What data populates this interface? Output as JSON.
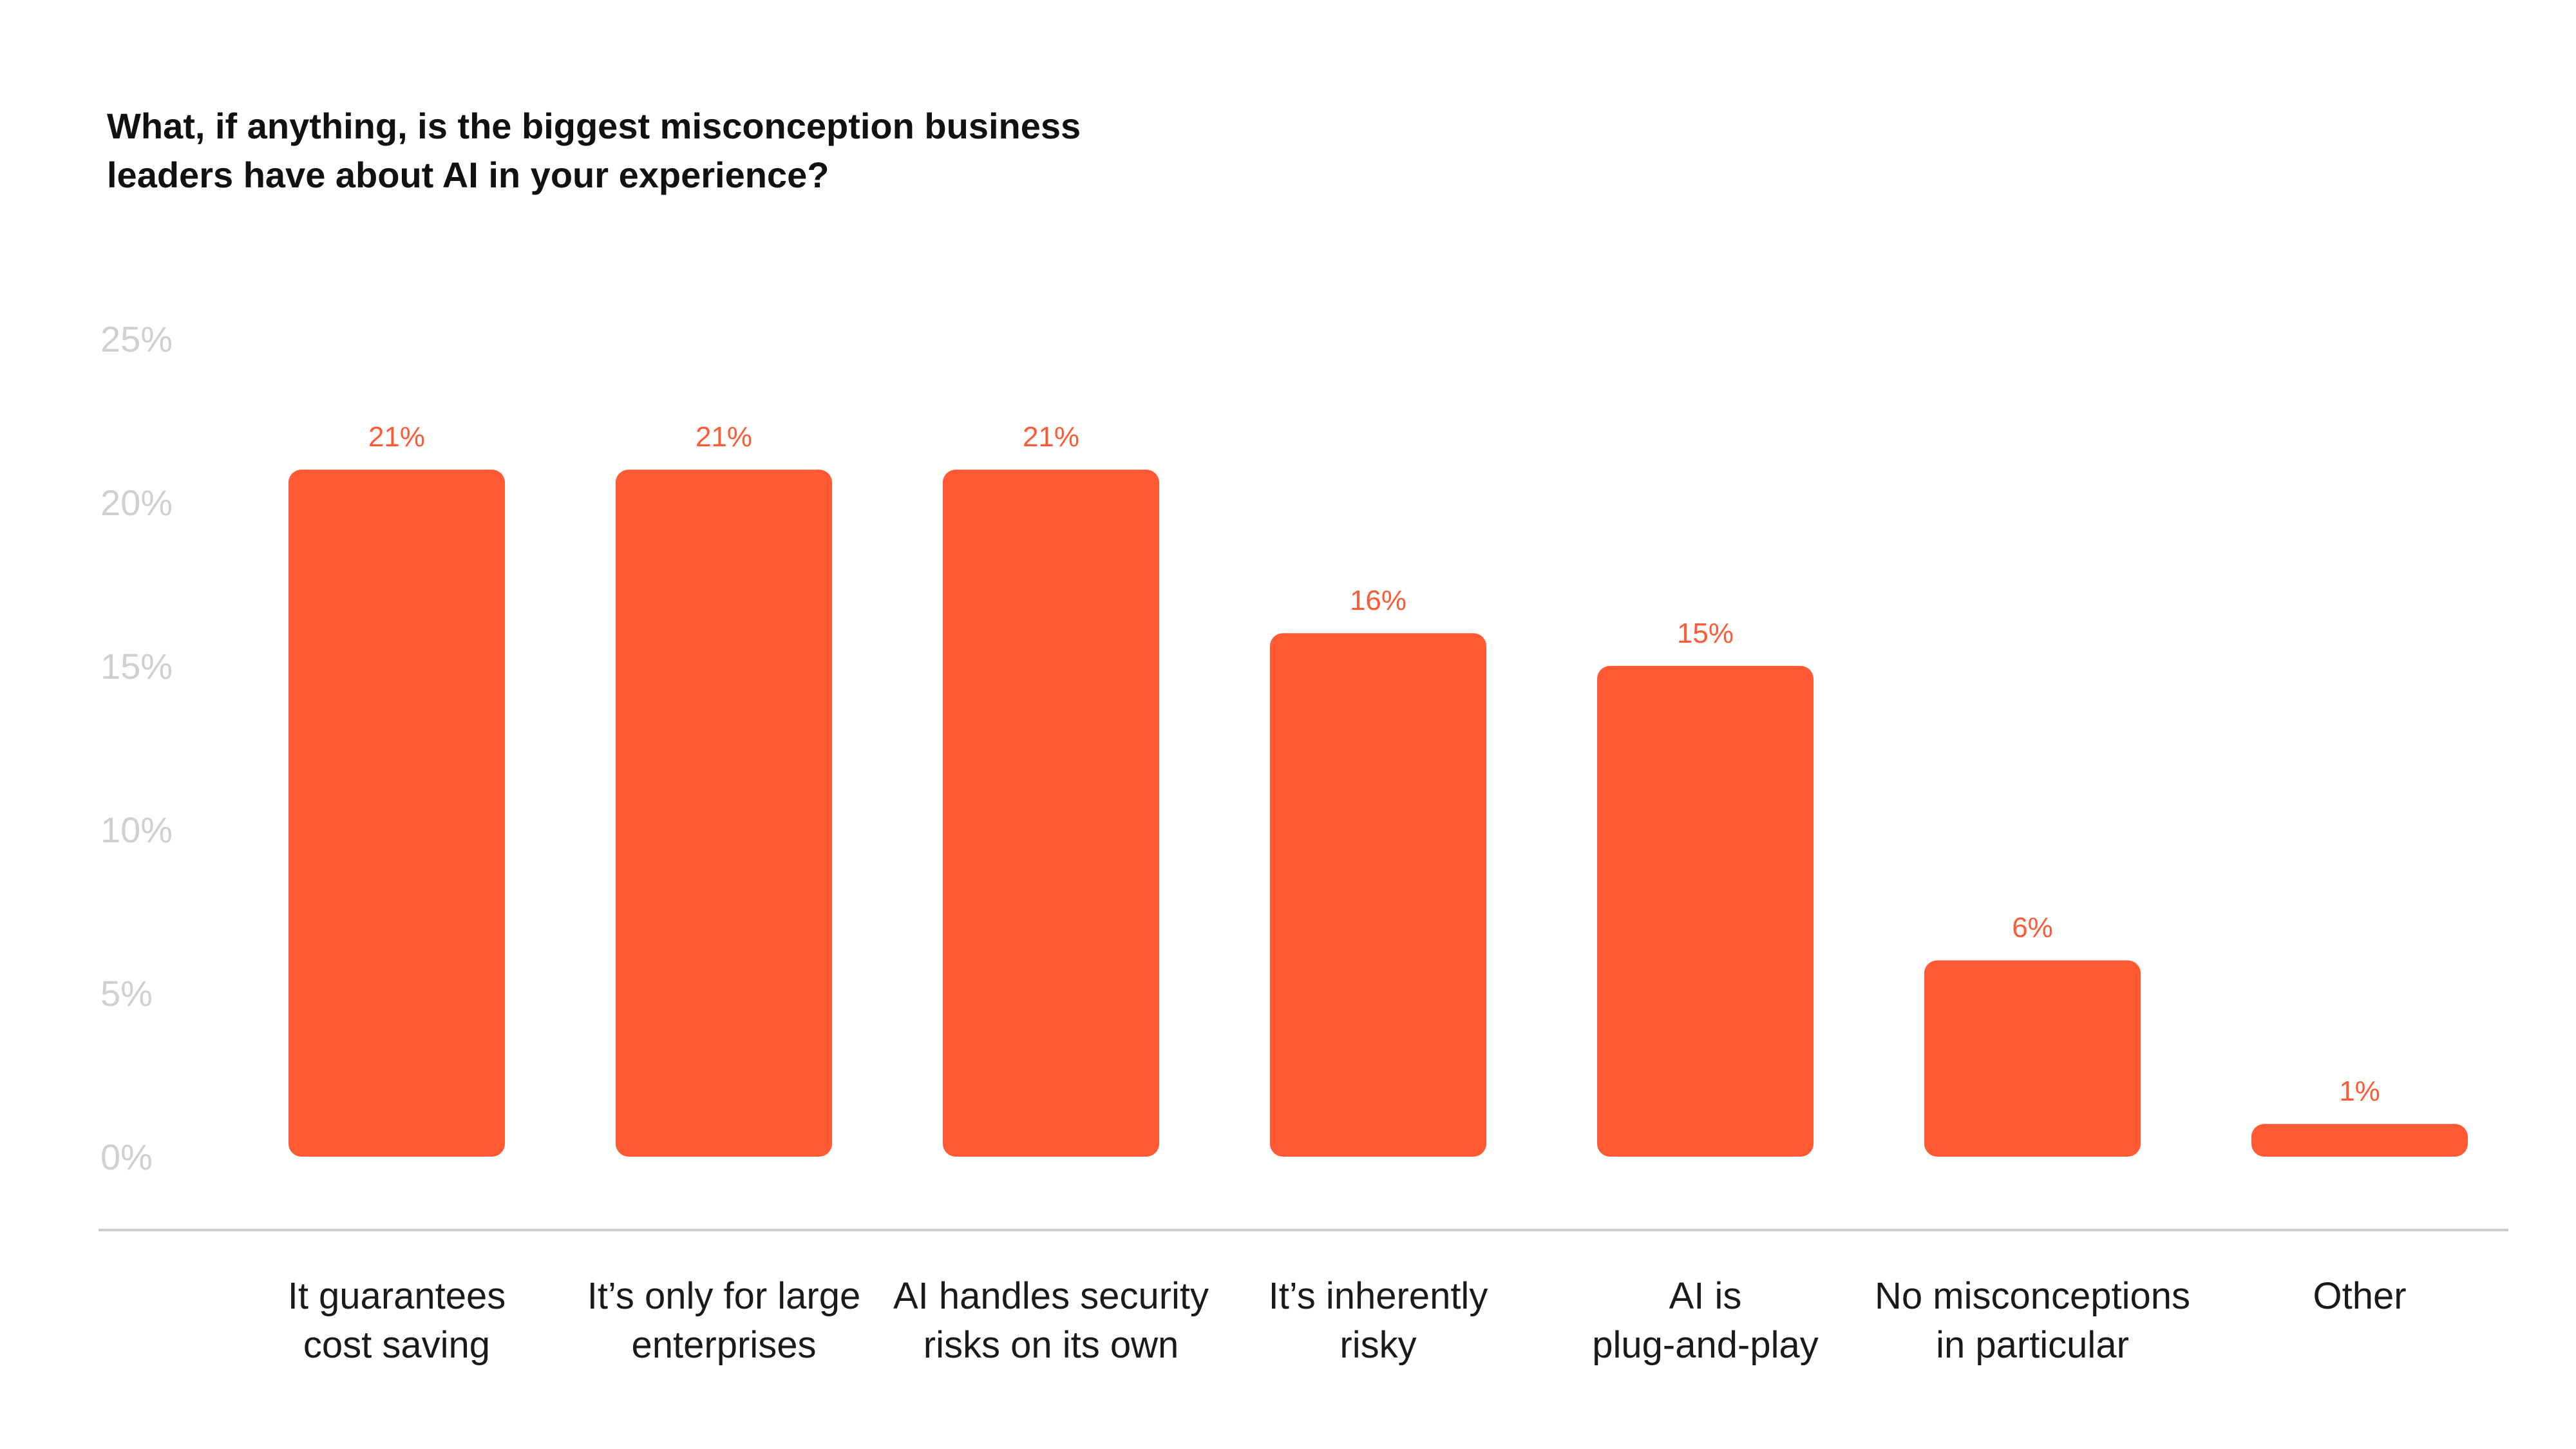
{
  "chart_data": {
    "type": "bar",
    "title": "What, if anything, is the biggest misconception business leaders have about AI in your experience?",
    "title_lines": [
      "What, if anything, is the biggest misconception business",
      "leaders have about AI in your experience?"
    ],
    "categories": [
      [
        "It guarantees",
        "cost saving"
      ],
      [
        "It’s only for large",
        "enterprises"
      ],
      [
        "AI handles security",
        "risks on its own"
      ],
      [
        "It’s inherently",
        "risky"
      ],
      [
        "AI is",
        "plug-and-play"
      ],
      [
        "No misconceptions",
        "in particular"
      ],
      [
        "Other"
      ]
    ],
    "values": [
      21,
      21,
      21,
      16,
      15,
      6,
      1
    ],
    "value_labels": [
      "21%",
      "21%",
      "21%",
      "16%",
      "15%",
      "6%",
      "1%"
    ],
    "yticks": [
      0,
      5,
      10,
      15,
      20,
      25
    ],
    "ytick_labels": [
      "0%",
      "5%",
      "10%",
      "15%",
      "20%",
      "25%"
    ],
    "ylim": [
      0,
      25
    ],
    "xlabel": "",
    "ylabel": "",
    "grid": false,
    "legend": "none",
    "colors": {
      "bar": "#ff5a33",
      "data_label": "#ff5a33",
      "tick_label": "#d0d0d0",
      "axis_line": "#cccccc",
      "category_label": "#1a1a1a",
      "title": "#111111"
    }
  }
}
